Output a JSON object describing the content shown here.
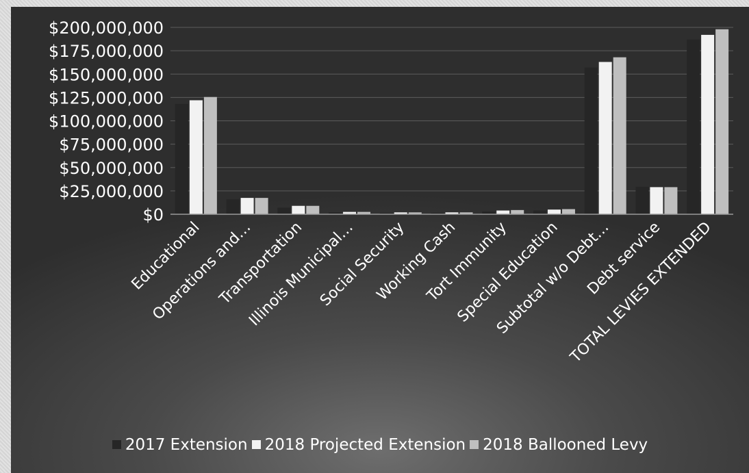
{
  "chart_data": {
    "type": "bar",
    "categories": [
      "Educational",
      "Operations and…",
      "Transportation",
      "Illinois Municipal…",
      "Social Security",
      "Working Cash",
      "Tort Immunity",
      "Special Education",
      "Subtotal w/o Debt…",
      "Debt service",
      "TOTAL LEVIES EXTENDED"
    ],
    "series": [
      {
        "name": "2017 Extension",
        "color": "#262626",
        "values": [
          118000000,
          16000000,
          7000000,
          2000000,
          1500000,
          1500000,
          3000000,
          4000000,
          157000000,
          29500000,
          187000000
        ]
      },
      {
        "name": "2018 Projected Extension",
        "color": "#f2f2f2",
        "values": [
          122000000,
          17500000,
          9000000,
          2500000,
          2000000,
          2000000,
          4000000,
          5000000,
          163000000,
          29000000,
          192000000
        ]
      },
      {
        "name": "2018 Ballooned Levy",
        "color": "#bfbfbf",
        "values": [
          125500000,
          17500000,
          9000000,
          2500000,
          2000000,
          2000000,
          4500000,
          5500000,
          168000000,
          29000000,
          198000000
        ]
      }
    ],
    "ylim": [
      0,
      200000000
    ],
    "yticks": [
      0,
      25000000,
      50000000,
      75000000,
      100000000,
      125000000,
      150000000,
      175000000,
      200000000
    ],
    "ytick_labels": [
      "$0",
      "$25,000,000",
      "$50,000,000",
      "$75,000,000",
      "$100,000,000",
      "$125,000,000",
      "$150,000,000",
      "$175,000,000",
      "$200,000,000"
    ],
    "grid": true,
    "legend_position": "bottom"
  }
}
